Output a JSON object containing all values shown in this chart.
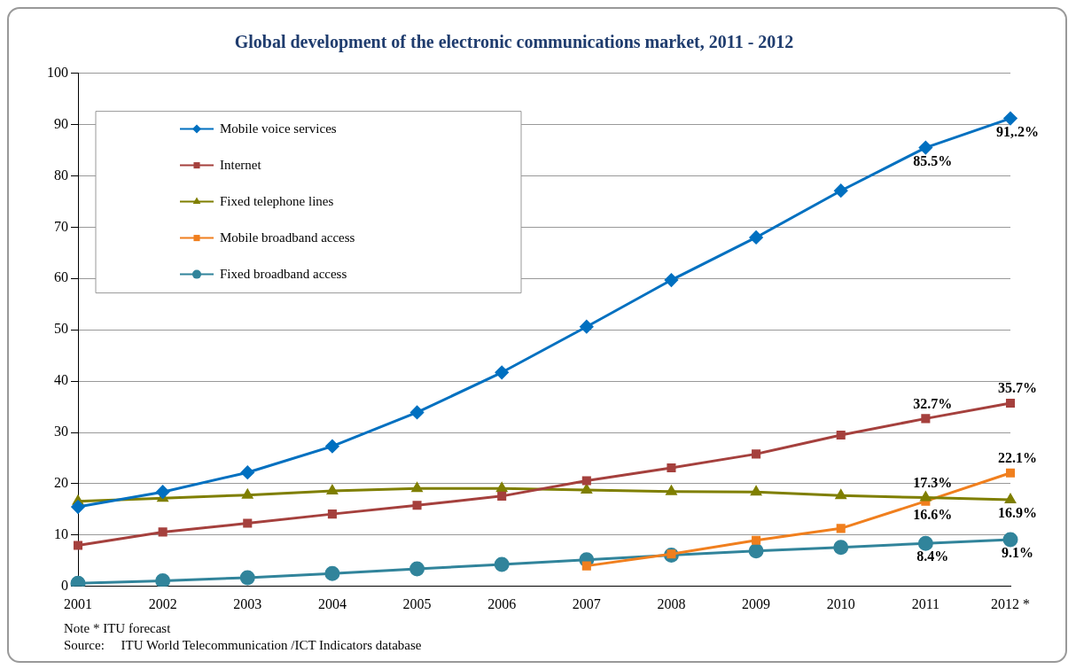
{
  "chart_data": {
    "type": "line",
    "title": "Global development of the electronic communications market, 2011 - 2012",
    "categories": [
      "2001",
      "2002",
      "2003",
      "2004",
      "2005",
      "2006",
      "2007",
      "2008",
      "2009",
      "2010",
      "2011",
      "2012 *"
    ],
    "series": [
      {
        "name": "Mobile voice services",
        "color": "#0070c0",
        "marker": "diamond",
        "values": [
          15.5,
          18.4,
          22.2,
          27.3,
          33.9,
          41.7,
          50.6,
          59.7,
          68.0,
          77.1,
          85.5,
          91.2
        ],
        "value_labels": [
          null,
          null,
          null,
          null,
          null,
          null,
          null,
          null,
          null,
          null,
          "85.5%",
          "91,.2%"
        ]
      },
      {
        "name": "Internet",
        "color": "#a5403d",
        "marker": "square",
        "values": [
          8.0,
          10.6,
          12.3,
          14.1,
          15.8,
          17.6,
          20.6,
          23.1,
          25.8,
          29.5,
          32.7,
          35.7
        ],
        "value_labels": [
          null,
          null,
          null,
          null,
          null,
          null,
          null,
          null,
          null,
          null,
          "32.7%",
          "35.7%"
        ]
      },
      {
        "name": "Fixed telephone lines",
        "color": "#7f7f00",
        "marker": "triangle",
        "values": [
          16.6,
          17.2,
          17.8,
          18.6,
          19.1,
          19.1,
          18.8,
          18.5,
          18.4,
          17.7,
          17.3,
          16.9
        ],
        "value_labels": [
          null,
          null,
          null,
          null,
          null,
          null,
          null,
          null,
          null,
          null,
          "17.3%",
          "16.9%"
        ]
      },
      {
        "name": "Mobile broadband access",
        "color": "#f07f1e",
        "marker": "square",
        "values": [
          null,
          null,
          null,
          null,
          null,
          null,
          4.0,
          6.3,
          9.0,
          11.3,
          16.6,
          22.1
        ],
        "value_labels": [
          null,
          null,
          null,
          null,
          null,
          null,
          null,
          null,
          null,
          null,
          "16.6%",
          "22.1%"
        ]
      },
      {
        "name": "Fixed broadband access",
        "color": "#31849b",
        "marker": "circle",
        "values": [
          0.6,
          1.1,
          1.7,
          2.5,
          3.4,
          4.3,
          5.2,
          6.1,
          6.9,
          7.6,
          8.4,
          9.1
        ],
        "value_labels": [
          null,
          null,
          null,
          null,
          null,
          null,
          null,
          null,
          null,
          null,
          "8.4%",
          "9.1%"
        ]
      }
    ],
    "ylim": [
      0,
      100
    ],
    "yticks": [
      0,
      10,
      20,
      30,
      40,
      50,
      60,
      70,
      80,
      90,
      100
    ],
    "grid": "y",
    "legend": "top left",
    "annotations": [
      "Note * ITU forecast",
      "Source:     ITU World Telecommunication /ICT Indicators database"
    ]
  }
}
